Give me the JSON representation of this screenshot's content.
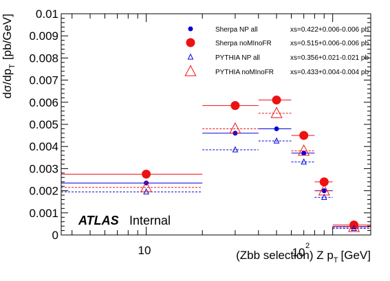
{
  "chart_data": {
    "type": "scatter",
    "xlabel_prefix": "(Zbb selection) Z p",
    "xlabel_sub": "T",
    "xlabel_unit": "[GeV]",
    "ylabel_prefix": "dσ/dp",
    "ylabel_sub": "T",
    "ylabel_unit": "[pb/GeV]",
    "x_scale": "log",
    "xlim": [
      3.5,
      160
    ],
    "ylim": [
      0,
      0.01
    ],
    "y_ticks": [
      "0",
      "0.001",
      "0.002",
      "0.003",
      "0.004",
      "0.005",
      "0.006",
      "0.007",
      "0.008",
      "0.009",
      "0.01"
    ],
    "x_tick_10": "10",
    "x_tick_100_base": "10",
    "x_tick_100_exp": "2",
    "atlas_label": "ATLAS",
    "atlas_sub": "Internal",
    "legend_position": "top-right",
    "series": [
      {
        "name": "Sherpa NP all",
        "xs": "xs=0.422+0.006-0.006 pb",
        "color": "#0000dd",
        "marker": "dot",
        "line": "solid",
        "points": [
          {
            "x": 10,
            "x_lo": 3.5,
            "x_hi": 20,
            "y": 0.00235
          },
          {
            "x": 30,
            "x_lo": 20,
            "x_hi": 40,
            "y": 0.0046
          },
          {
            "x": 50,
            "x_lo": 40,
            "x_hi": 60,
            "y": 0.0048
          },
          {
            "x": 70,
            "x_lo": 60,
            "x_hi": 80,
            "y": 0.0037
          },
          {
            "x": 90,
            "x_lo": 80,
            "x_hi": 100,
            "y": 0.002
          },
          {
            "x": 130,
            "x_lo": 100,
            "x_hi": 160,
            "y": 0.00038
          }
        ]
      },
      {
        "name": "Sherpa noMInoFR",
        "xs": "xs=0.515+0.006-0.006 pb",
        "color": "#ee1111",
        "marker": "bigdot",
        "line": "solid",
        "points": [
          {
            "x": 10,
            "x_lo": 3.5,
            "x_hi": 20,
            "y": 0.00275
          },
          {
            "x": 30,
            "x_lo": 20,
            "x_hi": 40,
            "y": 0.00585
          },
          {
            "x": 50,
            "x_lo": 40,
            "x_hi": 60,
            "y": 0.0061
          },
          {
            "x": 70,
            "x_lo": 60,
            "x_hi": 80,
            "y": 0.0045
          },
          {
            "x": 90,
            "x_lo": 80,
            "x_hi": 100,
            "y": 0.0024
          },
          {
            "x": 130,
            "x_lo": 100,
            "x_hi": 160,
            "y": 0.00045
          }
        ]
      },
      {
        "name": "PYTHIA NP all",
        "xs": "xs=0.356+0.021-0.021 pb",
        "color": "#0000dd",
        "marker": "triangle",
        "line": "dashed",
        "points": [
          {
            "x": 10,
            "x_lo": 3.5,
            "x_hi": 20,
            "y": 0.00195
          },
          {
            "x": 30,
            "x_lo": 20,
            "x_hi": 40,
            "y": 0.00385
          },
          {
            "x": 50,
            "x_lo": 40,
            "x_hi": 60,
            "y": 0.00425
          },
          {
            "x": 70,
            "x_lo": 60,
            "x_hi": 80,
            "y": 0.0033
          },
          {
            "x": 90,
            "x_lo": 80,
            "x_hi": 100,
            "y": 0.0017
          },
          {
            "x": 130,
            "x_lo": 100,
            "x_hi": 160,
            "y": 0.0003
          }
        ]
      },
      {
        "name": "PYTHIA noMInoFR",
        "xs": "xs=0.433+0.004-0.004 pb",
        "color": "#ee1111",
        "marker": "bigtriangle",
        "line": "dashed",
        "points": [
          {
            "x": 10,
            "x_lo": 3.5,
            "x_hi": 20,
            "y": 0.00215
          },
          {
            "x": 30,
            "x_lo": 20,
            "x_hi": 40,
            "y": 0.0048
          },
          {
            "x": 50,
            "x_lo": 40,
            "x_hi": 60,
            "y": 0.0055
          },
          {
            "x": 70,
            "x_lo": 60,
            "x_hi": 80,
            "y": 0.0038
          },
          {
            "x": 90,
            "x_lo": 80,
            "x_hi": 100,
            "y": 0.002
          },
          {
            "x": 130,
            "x_lo": 100,
            "x_hi": 160,
            "y": 0.00035
          }
        ]
      }
    ]
  }
}
